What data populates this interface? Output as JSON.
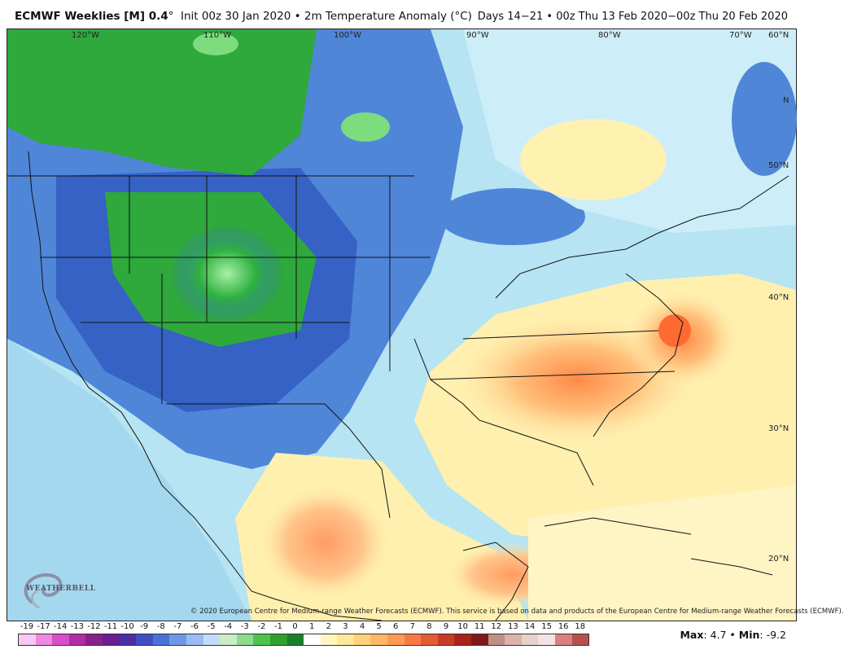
{
  "header": {
    "product": "ECMWF Weeklies [M] 0.4",
    "degree": "°",
    "init": "Init 00z 30 Jan 2020",
    "bullet": "•",
    "field": "2m Temperature Anomaly (°C)",
    "valid": "Days 14−21 • 00z Thu 13 Feb 2020−00z Thu 20 Feb 2020"
  },
  "lon_labels": [
    "120°W",
    "110°W",
    "100°W",
    "90°W",
    "80°W",
    "70°W",
    "60°N"
  ],
  "lat_labels": [
    "50°N",
    "40°N",
    "30°N",
    "20°N"
  ],
  "extra_lat_label": "N",
  "copyright": "© 2020 European Centre for Medium-range Weather Forecasts (ECMWF). This service is based on data and products of the European Centre for Medium-range Weather Forecasts (ECMWF).",
  "colorbar": {
    "labels": [
      "-19",
      "-17",
      "-14",
      "-13",
      "-12",
      "-11",
      "-10",
      "-9",
      "-8",
      "-7",
      "-6",
      "-5",
      "-4",
      "-3",
      "-2",
      "-1",
      "0",
      "1",
      "2",
      "3",
      "4",
      "5",
      "6",
      "7",
      "8",
      "9",
      "10",
      "11",
      "12",
      "13",
      "14",
      "15",
      "16",
      "18"
    ],
    "colors": [
      "#f7c8f0",
      "#ee88e0",
      "#d94fc7",
      "#b12aa6",
      "#8a1f8a",
      "#6a1e92",
      "#4b2fa5",
      "#3f4fc3",
      "#4a72d6",
      "#6e98e8",
      "#9bbcf2",
      "#c6dbf7",
      "#c9ecc9",
      "#8ddc8d",
      "#4cc44c",
      "#2ea02e",
      "#1a7f2a",
      "#ffffff",
      "#fff6c0",
      "#ffe899",
      "#ffd27a",
      "#ffb766",
      "#ff9a55",
      "#f77a46",
      "#e45a36",
      "#c93a27",
      "#a8231b",
      "#7d1b18",
      "#c28f86",
      "#d9b2ac",
      "#e9d0cb",
      "#f3e3e0",
      "#d98080",
      "#b85050"
    ]
  },
  "maxmin": {
    "max_label": "Max",
    "max_value": ": 4.7 •",
    "min_label": "Min",
    "min_value": ": -9.2"
  },
  "logo": {
    "text": "WEATHERBELL"
  }
}
